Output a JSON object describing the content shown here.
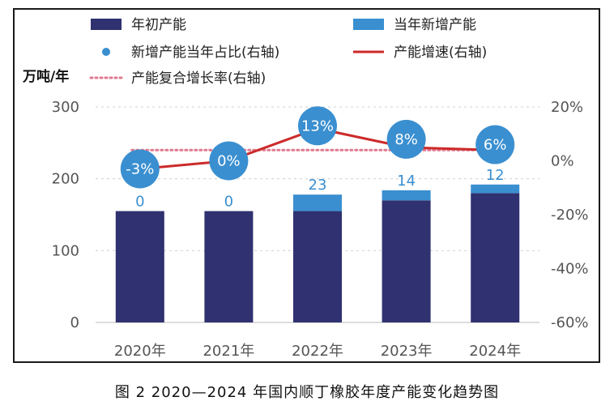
{
  "caption": "图 2  2020—2024 年国内顺丁橡胶年度产能变化趋势图",
  "colors": {
    "base": "#2f3170",
    "new": "#3a8fd0",
    "growth_line": "#cc2a2a",
    "cagr_line": "#e07a90",
    "bubble": "#3a8fd0",
    "grid": "#d0d0d0"
  },
  "chart_data": {
    "type": "bar",
    "stacked": true,
    "ylabel": "万吨/年",
    "categories": [
      "2020年",
      "2021年",
      "2022年",
      "2023年",
      "2024年"
    ],
    "ylim": [
      0,
      300
    ],
    "yticks": [
      "0",
      "100",
      "200",
      "300"
    ],
    "y2lim": [
      -60,
      20
    ],
    "y2ticks": [
      "-60%",
      "-40%",
      "-20%",
      "0%",
      "20%"
    ],
    "grid": true,
    "series": [
      {
        "name": "年初产能",
        "type": "bar",
        "axis": "left",
        "values": [
          155,
          155,
          155,
          170,
          180
        ]
      },
      {
        "name": "当年新增产能",
        "type": "bar",
        "axis": "left",
        "values": [
          0,
          0,
          23,
          14,
          12
        ],
        "labels": [
          "0",
          "0",
          "23",
          "14",
          "12"
        ]
      },
      {
        "name": "新增产能当年占比(右轴)",
        "type": "scatter",
        "axis": "right",
        "values": [
          -3,
          0,
          13,
          8,
          6
        ],
        "labels": [
          "-3%",
          "0%",
          "13%",
          "8%",
          "6%"
        ]
      },
      {
        "name": "产能增速(右轴)",
        "type": "line",
        "axis": "right",
        "values": [
          -3,
          0,
          12,
          5,
          4
        ]
      },
      {
        "name": "产能复合增长率(右轴)",
        "type": "line",
        "axis": "right",
        "dashed": true,
        "values": [
          4,
          4,
          4,
          4,
          4
        ]
      }
    ]
  }
}
